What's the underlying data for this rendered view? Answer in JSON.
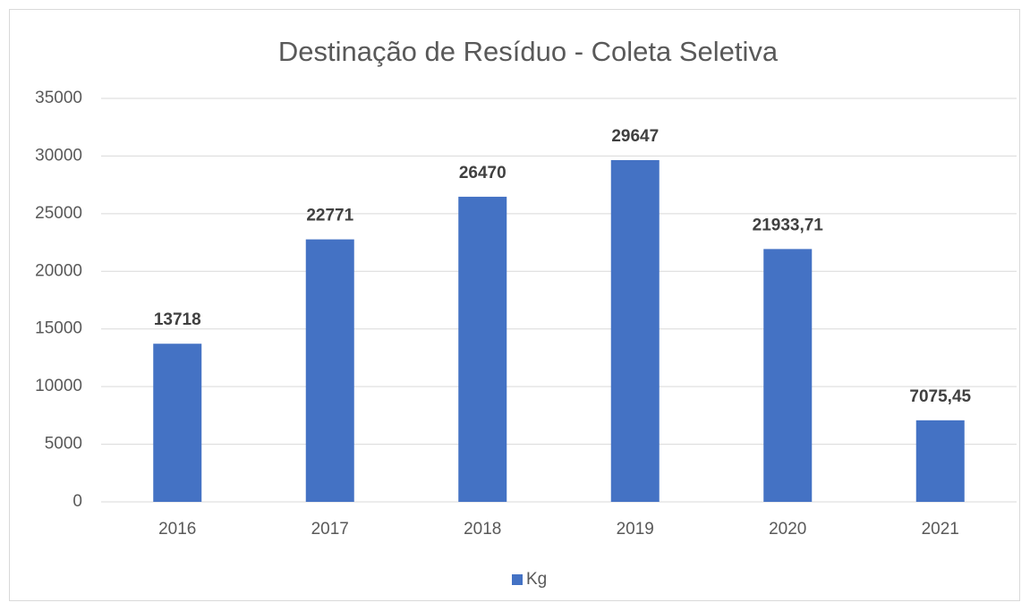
{
  "chart_data": {
    "type": "bar",
    "title": "Destinação de Resíduo - Coleta Seletiva",
    "categories": [
      "2016",
      "2017",
      "2018",
      "2019",
      "2020",
      "2021"
    ],
    "series": [
      {
        "name": "Kg",
        "color": "#4472c4",
        "values": [
          13718,
          22771,
          26470,
          29647,
          21933.71,
          7075.45
        ],
        "value_labels": [
          "13718",
          "22771",
          "26470",
          "29647",
          "21933,71",
          "7075,45"
        ]
      }
    ],
    "ylim": [
      0,
      35000
    ],
    "yticks": [
      0,
      5000,
      10000,
      15000,
      20000,
      25000,
      30000,
      35000
    ],
    "grid": true,
    "legend": "bottom"
  }
}
